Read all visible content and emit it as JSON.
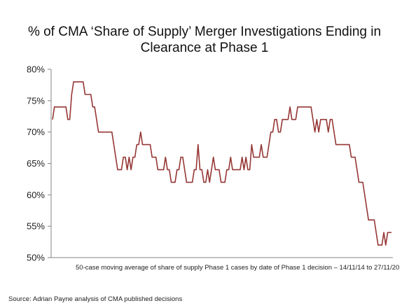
{
  "chart_data": {
    "type": "line",
    "title": "% of CMA ‘Share of Supply’ Merger Investigations Ending in Clearance at Phase 1",
    "title_lines": [
      "% of CMA ‘Share of Supply’ Merger Investigations Ending in",
      "Clearance at Phase 1"
    ],
    "xlabel": "",
    "ylabel": "",
    "ylim": [
      50,
      80
    ],
    "y_ticks": [
      "80%",
      "75%",
      "70%",
      "65%",
      "60%",
      "55%",
      "50%"
    ],
    "y_tick_values": [
      80,
      75,
      70,
      65,
      60,
      55,
      50
    ],
    "grid": false,
    "legend": "none",
    "caption": "50-case moving average of share of supply Phase 1 cases by date of Phase 1 decision  – 14/11/14 to 27/11/20",
    "source": "Source: Adrian Payne analysis of CMA published decisions",
    "line_color": "#953735",
    "series": [
      {
        "values": [
          72,
          74,
          74,
          74,
          74,
          74,
          74,
          74,
          72,
          72,
          76,
          78,
          78,
          78,
          78,
          78,
          78,
          76,
          76,
          76,
          76,
          74,
          74,
          72,
          70,
          70,
          70,
          70,
          70,
          70,
          70,
          70,
          68,
          66,
          64,
          64,
          64,
          66,
          66,
          64,
          66,
          64,
          66,
          66,
          68,
          68,
          70,
          68,
          68,
          68,
          68,
          68,
          66,
          66,
          66,
          64,
          64,
          64,
          64,
          66,
          64,
          64,
          62,
          62,
          62,
          64,
          64,
          66,
          66,
          64,
          62,
          62,
          62,
          62,
          64,
          64,
          68,
          64,
          64,
          62,
          62,
          64,
          62,
          64,
          66,
          64,
          64,
          64,
          62,
          62,
          62,
          64,
          64,
          66,
          64,
          64,
          64,
          64,
          64,
          66,
          64,
          66,
          64,
          64,
          68,
          66,
          66,
          66,
          66,
          68,
          66,
          66,
          66,
          68,
          70,
          70,
          72,
          72,
          70,
          70,
          72,
          72,
          72,
          72,
          74,
          72,
          72,
          72,
          74,
          74,
          74,
          74,
          74,
          74,
          74,
          74,
          72,
          70,
          72,
          70,
          72,
          72,
          72,
          72,
          70,
          72,
          72,
          70,
          68,
          68,
          68,
          68,
          68,
          68,
          68,
          68,
          66,
          66,
          66,
          64,
          62,
          62,
          62,
          60,
          58,
          56,
          56,
          56,
          56,
          54,
          52,
          52,
          52,
          54,
          52,
          54,
          54,
          54
        ]
      }
    ]
  }
}
